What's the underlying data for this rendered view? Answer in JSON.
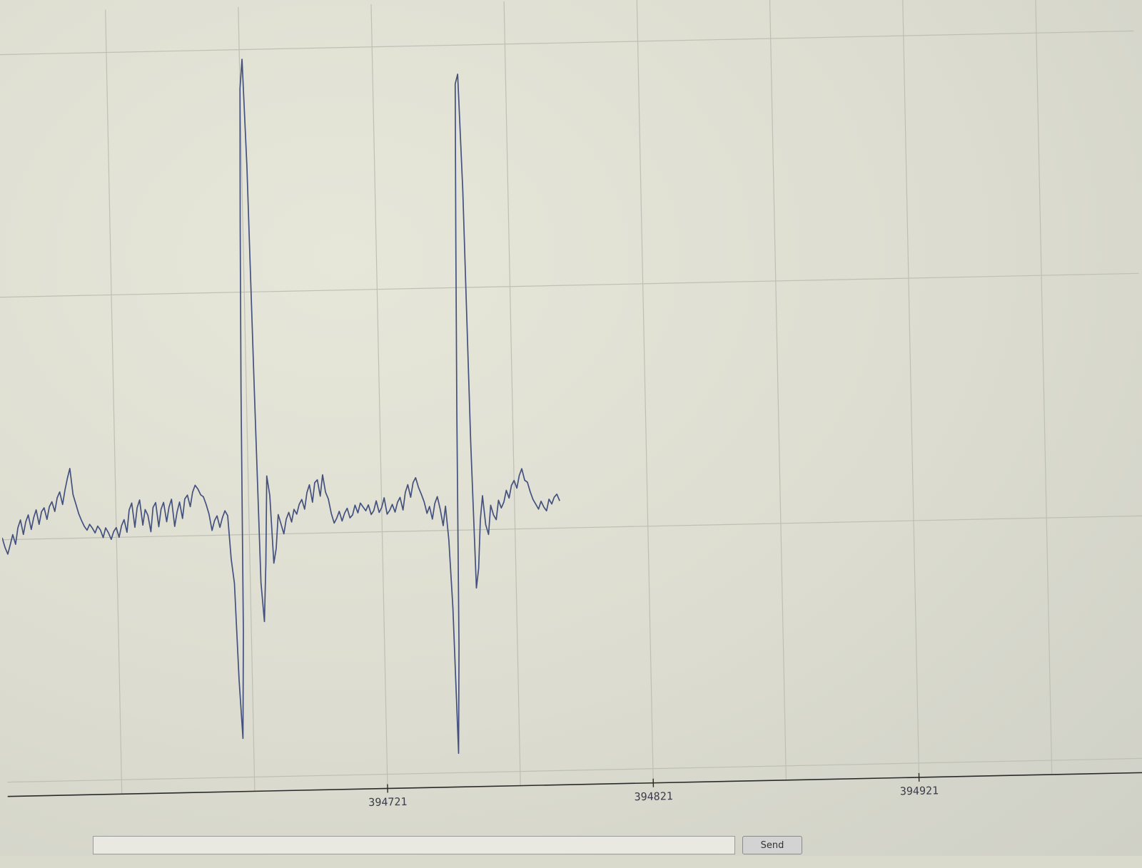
{
  "chart_data": {
    "type": "line",
    "title": "",
    "xlabel": "",
    "ylabel": "",
    "x_ticks": [
      394721,
      394821,
      394921
    ],
    "x_tick_labels": [
      "394721",
      "394821",
      "394921"
    ],
    "xlim": [
      394578,
      395005
    ],
    "ylim": [
      -2.5,
      5.0
    ],
    "grid": true,
    "line_color": "#44517f",
    "series": [
      {
        "x_start": 394578,
        "x_step": 1,
        "values": [
          0.02,
          -0.08,
          -0.15,
          -0.05,
          0.05,
          -0.05,
          0.12,
          0.2,
          0.05,
          0.18,
          0.25,
          0.1,
          0.22,
          0.3,
          0.15,
          0.28,
          0.32,
          0.2,
          0.33,
          0.38,
          0.28,
          0.42,
          0.48,
          0.35,
          0.5,
          0.62,
          0.72,
          0.45,
          0.35,
          0.25,
          0.18,
          0.12,
          0.08,
          0.14,
          0.1,
          0.05,
          0.12,
          0.08,
          0.0,
          0.1,
          0.05,
          -0.02,
          0.06,
          0.1,
          0.0,
          0.12,
          0.18,
          0.05,
          0.28,
          0.35,
          0.1,
          0.3,
          0.38,
          0.12,
          0.28,
          0.22,
          0.05,
          0.3,
          0.35,
          0.1,
          0.28,
          0.35,
          0.15,
          0.3,
          0.38,
          0.1,
          0.25,
          0.35,
          0.18,
          0.38,
          0.42,
          0.3,
          0.45,
          0.52,
          0.48,
          0.42,
          0.4,
          0.32,
          0.22,
          0.05,
          0.15,
          0.2,
          0.08,
          0.18,
          0.25,
          0.2,
          -0.25,
          -0.5,
          -1.5,
          -2.1,
          -1.0,
          1.5,
          3.2,
          4.6,
          4.9,
          3.8,
          1.5,
          -0.5,
          -0.9,
          -0.3,
          0.6,
          0.4,
          -0.3,
          -0.15,
          0.2,
          0.1,
          0.0,
          0.15,
          0.22,
          0.12,
          0.25,
          0.2,
          0.3,
          0.35,
          0.25,
          0.42,
          0.5,
          0.32,
          0.52,
          0.55,
          0.38,
          0.6,
          0.42,
          0.35,
          0.2,
          0.1,
          0.15,
          0.22,
          0.12,
          0.2,
          0.25,
          0.15,
          0.18,
          0.28,
          0.2,
          0.3,
          0.26,
          0.22,
          0.28,
          0.18,
          0.22,
          0.32,
          0.2,
          0.25,
          0.35,
          0.18,
          0.22,
          0.28,
          0.2,
          0.3,
          0.35,
          0.22,
          0.4,
          0.48,
          0.35,
          0.5,
          0.55,
          0.45,
          0.38,
          0.3,
          0.18,
          0.25,
          0.12,
          0.28,
          0.35,
          0.22,
          0.05,
          0.25,
          -0.1,
          -0.8,
          -2.3,
          -1.2,
          1.2,
          3.0,
          4.6,
          4.7,
          3.5,
          0.9,
          -0.6,
          -0.4,
          0.1,
          0.35,
          0.05,
          -0.05,
          0.25,
          0.15,
          0.1,
          0.3,
          0.22,
          0.28,
          0.4,
          0.32,
          0.45,
          0.5,
          0.42,
          0.55,
          0.62,
          0.5,
          0.48,
          0.38,
          0.3,
          0.25,
          0.2,
          0.28,
          0.22,
          0.18,
          0.3,
          0.25,
          0.32,
          0.35,
          0.28
        ]
      }
    ]
  },
  "input_bar": {
    "send_label": "Send"
  }
}
